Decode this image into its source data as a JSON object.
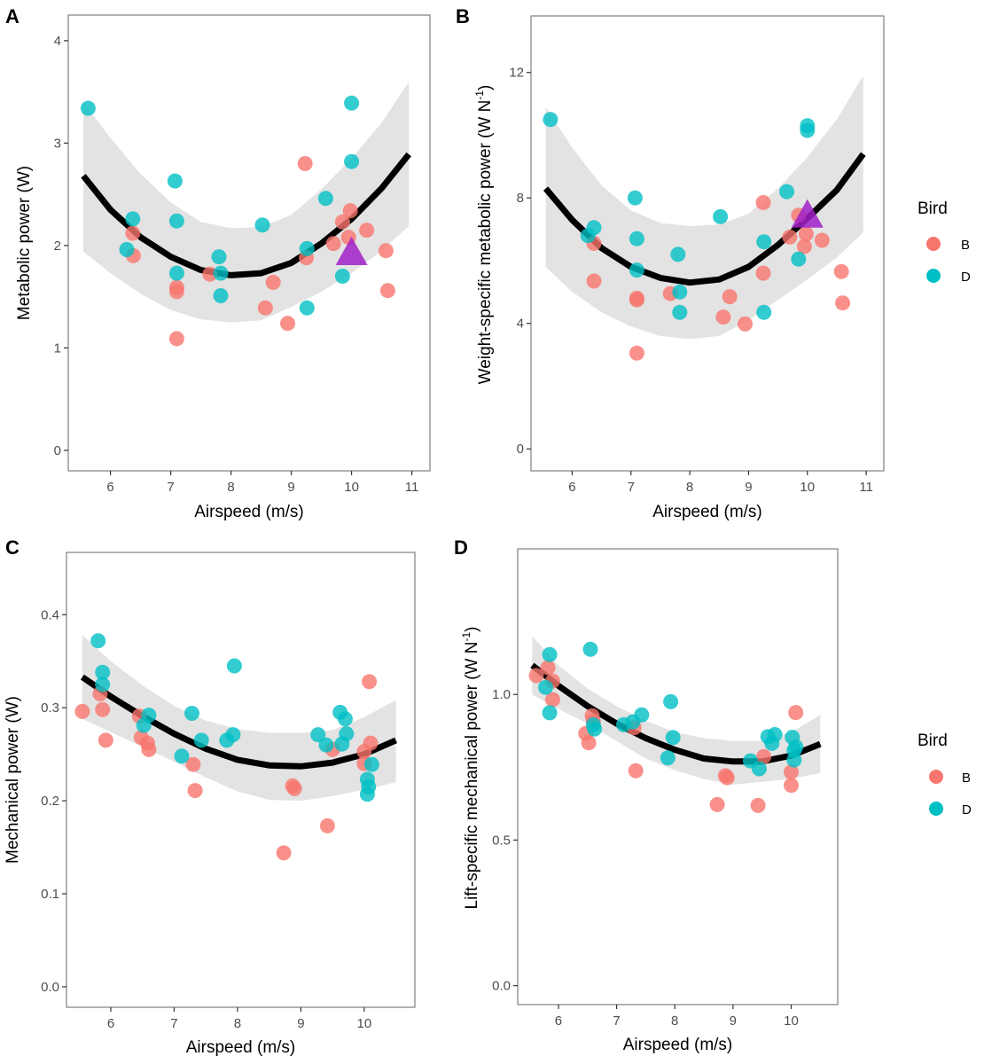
{
  "figure": {
    "legend": {
      "title": "Bird",
      "entries": [
        {
          "label": "B",
          "color": "#F8766D"
        },
        {
          "label": "D",
          "color": "#00BFC4"
        }
      ]
    },
    "colors": {
      "B": "#F8766D",
      "D": "#00BFC4",
      "fit": "#000000",
      "ci_band": "#e3e3e3",
      "highlight": "#A020C8"
    }
  },
  "chart_data": [
    {
      "panel": "A",
      "type": "scatter",
      "title": "",
      "xlabel": "Airspeed (m/s)",
      "ylabel": "Metabolic power (W)",
      "xlim": [
        5.3,
        11.3
      ],
      "ylim": [
        -0.2,
        4.25
      ],
      "xticks": [
        6,
        7,
        8,
        9,
        10,
        11
      ],
      "xtick_labels": [
        "6",
        "7",
        "8",
        "9",
        "10",
        "11"
      ],
      "yticks": [
        0,
        1,
        2,
        3,
        4
      ],
      "ytick_labels": [
        "0",
        "1",
        "2",
        "3",
        "4"
      ],
      "grid": false,
      "legend": "none",
      "series": [
        {
          "name": "B",
          "points": [
            [
              6.37,
              2.12
            ],
            [
              6.38,
              1.9
            ],
            [
              7.1,
              1.59
            ],
            [
              7.1,
              1.55
            ],
            [
              7.1,
              1.09
            ],
            [
              7.65,
              1.72
            ],
            [
              8.7,
              1.64
            ],
            [
              8.57,
              1.39
            ],
            [
              8.94,
              1.24
            ],
            [
              9.23,
              2.8
            ],
            [
              9.25,
              1.88
            ],
            [
              9.7,
              2.02
            ],
            [
              9.85,
              2.23
            ],
            [
              9.98,
              2.34
            ],
            [
              9.95,
              2.08
            ],
            [
              10.25,
              2.15
            ],
            [
              10.57,
              1.95
            ],
            [
              10.6,
              1.56
            ]
          ]
        },
        {
          "name": "D",
          "points": [
            [
              5.63,
              3.34
            ],
            [
              6.37,
              2.26
            ],
            [
              6.27,
              1.96
            ],
            [
              7.07,
              2.63
            ],
            [
              7.1,
              2.24
            ],
            [
              7.1,
              1.73
            ],
            [
              7.8,
              1.89
            ],
            [
              7.83,
              1.73
            ],
            [
              7.83,
              1.51
            ],
            [
              8.52,
              2.2
            ],
            [
              9.26,
              1.97
            ],
            [
              9.26,
              1.39
            ],
            [
              9.57,
              2.46
            ],
            [
              10.0,
              3.39
            ],
            [
              10.0,
              2.82
            ],
            [
              9.85,
              1.7
            ]
          ]
        }
      ],
      "highlight": {
        "shape": "triangle",
        "point": [
          10.0,
          1.93
        ]
      },
      "fit": {
        "x": [
          5.55,
          6.0,
          6.5,
          7.0,
          7.5,
          8.0,
          8.5,
          9.0,
          9.5,
          10.0,
          10.5,
          10.95
        ],
        "y": [
          2.68,
          2.35,
          2.08,
          1.89,
          1.76,
          1.71,
          1.73,
          1.83,
          2.02,
          2.26,
          2.56,
          2.89
        ]
      },
      "ci_upper": [
        3.4,
        3.05,
        2.7,
        2.42,
        2.23,
        2.17,
        2.18,
        2.3,
        2.55,
        2.85,
        3.2,
        3.6
      ],
      "ci_lower": [
        1.94,
        1.73,
        1.53,
        1.37,
        1.28,
        1.25,
        1.27,
        1.4,
        1.55,
        1.73,
        1.95,
        2.19
      ]
    },
    {
      "panel": "B",
      "type": "scatter",
      "title": "",
      "xlabel": "Airspeed (m/s)",
      "ylabel": "Weight-specific metabolic power  (W N-1)",
      "ylabel_main": "Weight-specific metabolic power  (W N",
      "ylabel_sup": "-1",
      "ylabel_end": ")",
      "xlim": [
        5.3,
        11.3
      ],
      "ylim": [
        -0.7,
        13.8
      ],
      "xticks": [
        6,
        7,
        8,
        9,
        10,
        11
      ],
      "xtick_labels": [
        "6",
        "7",
        "8",
        "9",
        "10",
        "11"
      ],
      "yticks": [
        0,
        4,
        8,
        12
      ],
      "ytick_labels": [
        "0",
        "4",
        "8",
        "12"
      ],
      "grid": false,
      "legend": "right",
      "series": [
        {
          "name": "B",
          "points": [
            [
              6.37,
              6.55
            ],
            [
              6.37,
              5.35
            ],
            [
              7.1,
              4.8
            ],
            [
              7.1,
              4.75
            ],
            [
              7.1,
              3.05
            ],
            [
              7.67,
              4.95
            ],
            [
              8.68,
              4.85
            ],
            [
              8.57,
              4.2
            ],
            [
              8.94,
              3.98
            ],
            [
              9.25,
              7.85
            ],
            [
              9.25,
              5.6
            ],
            [
              9.7,
              6.75
            ],
            [
              9.85,
              7.45
            ],
            [
              9.98,
              6.85
            ],
            [
              9.95,
              6.45
            ],
            [
              10.25,
              6.65
            ],
            [
              10.58,
              5.65
            ],
            [
              10.6,
              4.65
            ]
          ]
        },
        {
          "name": "D",
          "points": [
            [
              5.63,
              10.5
            ],
            [
              6.37,
              7.05
            ],
            [
              6.27,
              6.8
            ],
            [
              7.07,
              8.0
            ],
            [
              7.1,
              6.7
            ],
            [
              7.1,
              5.7
            ],
            [
              7.8,
              6.2
            ],
            [
              7.83,
              5.0
            ],
            [
              7.83,
              4.35
            ],
            [
              8.52,
              7.4
            ],
            [
              9.26,
              6.6
            ],
            [
              9.26,
              4.35
            ],
            [
              9.65,
              8.2
            ],
            [
              10.0,
              10.3
            ],
            [
              10.0,
              10.15
            ],
            [
              9.85,
              6.05
            ]
          ]
        }
      ],
      "highlight": {
        "shape": "triangle",
        "point": [
          10.0,
          7.45
        ]
      },
      "fit": {
        "x": [
          5.55,
          6.0,
          6.5,
          7.0,
          7.5,
          8.0,
          8.5,
          9.0,
          9.5,
          10.0,
          10.5,
          10.95
        ],
        "y": [
          8.3,
          7.3,
          6.4,
          5.8,
          5.45,
          5.3,
          5.4,
          5.8,
          6.5,
          7.35,
          8.25,
          9.4
        ]
      },
      "ci_upper": [
        10.9,
        9.6,
        8.4,
        7.6,
        7.2,
        7.1,
        7.15,
        7.5,
        8.3,
        9.3,
        10.5,
        11.9
      ],
      "ci_lower": [
        5.8,
        5.0,
        4.35,
        3.9,
        3.6,
        3.5,
        3.6,
        4.1,
        4.75,
        5.4,
        6.1,
        6.9
      ]
    },
    {
      "panel": "C",
      "type": "scatter",
      "title": "",
      "xlabel": "Airspeed (m/s)",
      "ylabel": "Mechanical power (W)",
      "xlim": [
        5.3,
        10.8
      ],
      "ylim": [
        -0.022,
        0.467
      ],
      "xticks": [
        6,
        7,
        8,
        9,
        10
      ],
      "xtick_labels": [
        "6",
        "7",
        "8",
        "9",
        "10"
      ],
      "yticks": [
        0.0,
        0.1,
        0.2,
        0.3,
        0.4
      ],
      "ytick_labels": [
        "0.0",
        "0.1",
        "0.2",
        "0.3",
        "0.4"
      ],
      "grid": false,
      "legend": "none",
      "series": [
        {
          "name": "B",
          "points": [
            [
              5.55,
              0.296
            ],
            [
              5.83,
              0.315
            ],
            [
              5.87,
              0.298
            ],
            [
              5.92,
              0.265
            ],
            [
              6.45,
              0.291
            ],
            [
              6.48,
              0.268
            ],
            [
              6.58,
              0.262
            ],
            [
              6.6,
              0.255
            ],
            [
              7.3,
              0.239
            ],
            [
              7.33,
              0.211
            ],
            [
              8.87,
              0.216
            ],
            [
              8.9,
              0.213
            ],
            [
              8.73,
              0.144
            ],
            [
              9.42,
              0.173
            ],
            [
              9.5,
              0.255
            ],
            [
              10.0,
              0.253
            ],
            [
              10.0,
              0.24
            ],
            [
              10.1,
              0.262
            ],
            [
              10.08,
              0.328
            ]
          ]
        },
        {
          "name": "D",
          "points": [
            [
              5.8,
              0.372
            ],
            [
              5.87,
              0.338
            ],
            [
              5.87,
              0.325
            ],
            [
              6.6,
              0.292
            ],
            [
              6.52,
              0.281
            ],
            [
              7.28,
              0.294
            ],
            [
              7.43,
              0.265
            ],
            [
              7.12,
              0.248
            ],
            [
              7.95,
              0.345
            ],
            [
              7.83,
              0.265
            ],
            [
              7.93,
              0.271
            ],
            [
              9.27,
              0.271
            ],
            [
              9.4,
              0.26
            ],
            [
              9.62,
              0.295
            ],
            [
              9.7,
              0.288
            ],
            [
              9.72,
              0.272
            ],
            [
              9.65,
              0.261
            ],
            [
              10.05,
              0.223
            ],
            [
              10.07,
              0.215
            ],
            [
              10.05,
              0.207
            ],
            [
              10.12,
              0.239
            ]
          ]
        }
      ],
      "fit": {
        "x": [
          5.55,
          6.0,
          6.5,
          7.0,
          7.5,
          8.0,
          8.5,
          9.0,
          9.5,
          10.0,
          10.5
        ],
        "y": [
          0.333,
          0.312,
          0.291,
          0.272,
          0.256,
          0.244,
          0.238,
          0.237,
          0.241,
          0.25,
          0.265
        ]
      },
      "ci_upper": [
        0.378,
        0.35,
        0.324,
        0.302,
        0.286,
        0.277,
        0.273,
        0.273,
        0.276,
        0.29,
        0.308
      ],
      "ci_lower": [
        0.288,
        0.274,
        0.258,
        0.242,
        0.225,
        0.21,
        0.201,
        0.2,
        0.205,
        0.212,
        0.22
      ]
    },
    {
      "panel": "D",
      "type": "scatter",
      "title": "",
      "xlabel": "Airspeed (m/s)",
      "ylabel": "Lift-specific mechanical power  (W N-1)",
      "ylabel_main": "Lift-specific mechanical power  (W N",
      "ylabel_sup": "-1",
      "ylabel_end": ")",
      "xlim": [
        5.3,
        10.8
      ],
      "ylim": [
        -0.065,
        1.5
      ],
      "xticks": [
        6,
        7,
        8,
        9,
        10
      ],
      "xtick_labels": [
        "6",
        "7",
        "8",
        "9",
        "10"
      ],
      "yticks": [
        0.0,
        0.5,
        1.0
      ],
      "ytick_labels": [
        "0.0",
        "0.5",
        "1.0"
      ],
      "grid": false,
      "legend": "right",
      "series": [
        {
          "name": "B",
          "points": [
            [
              5.62,
              1.065
            ],
            [
              5.82,
              1.092
            ],
            [
              5.9,
              1.046
            ],
            [
              5.9,
              0.982
            ],
            [
              6.47,
              0.866
            ],
            [
              6.52,
              0.834
            ],
            [
              6.58,
              0.927
            ],
            [
              6.6,
              0.908
            ],
            [
              7.3,
              0.886
            ],
            [
              7.33,
              0.738
            ],
            [
              8.87,
              0.721
            ],
            [
              8.9,
              0.714
            ],
            [
              8.73,
              0.622
            ],
            [
              9.43,
              0.619
            ],
            [
              9.53,
              0.787
            ],
            [
              10.0,
              0.734
            ],
            [
              10.0,
              0.688
            ],
            [
              10.08,
              0.938
            ]
          ]
        },
        {
          "name": "D",
          "points": [
            [
              5.85,
              1.137
            ],
            [
              5.78,
              1.024
            ],
            [
              5.85,
              0.937
            ],
            [
              6.55,
              1.155
            ],
            [
              6.6,
              0.896
            ],
            [
              6.62,
              0.881
            ],
            [
              7.12,
              0.896
            ],
            [
              7.28,
              0.906
            ],
            [
              7.43,
              0.93
            ],
            [
              7.93,
              0.975
            ],
            [
              7.97,
              0.852
            ],
            [
              7.88,
              0.782
            ],
            [
              9.3,
              0.772
            ],
            [
              9.45,
              0.745
            ],
            [
              9.6,
              0.855
            ],
            [
              9.67,
              0.832
            ],
            [
              9.72,
              0.862
            ],
            [
              10.02,
              0.853
            ],
            [
              10.05,
              0.808
            ],
            [
              10.08,
              0.82
            ],
            [
              10.05,
              0.775
            ]
          ]
        }
      ],
      "fit": {
        "x": [
          5.55,
          6.0,
          6.5,
          7.0,
          7.5,
          8.0,
          8.5,
          9.0,
          9.5,
          10.0,
          10.5
        ],
        "y": [
          1.1,
          1.03,
          0.96,
          0.9,
          0.85,
          0.81,
          0.78,
          0.77,
          0.77,
          0.79,
          0.83
        ]
      },
      "ci_upper": [
        1.2,
        1.1,
        1.02,
        0.96,
        0.91,
        0.87,
        0.85,
        0.84,
        0.84,
        0.87,
        0.93
      ],
      "ci_lower": [
        1.0,
        0.95,
        0.9,
        0.84,
        0.78,
        0.74,
        0.71,
        0.69,
        0.7,
        0.71,
        0.73
      ]
    }
  ]
}
